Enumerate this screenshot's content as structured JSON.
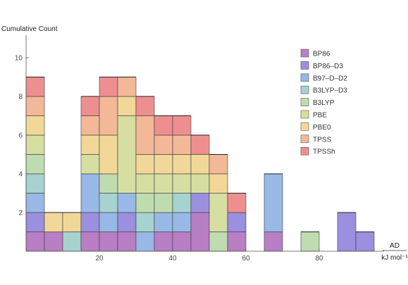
{
  "chart_data": {
    "type": "bar",
    "stacked": true,
    "title": "",
    "ylabel": "Cumulative Count",
    "xlabel": "AD",
    "xlabel_unit": "kJ mol⁻¹",
    "bin_width": 5,
    "xlim": [
      0,
      95
    ],
    "ylim": [
      0,
      11
    ],
    "xticks": [
      20,
      40,
      60,
      80
    ],
    "yticks": [
      2,
      4,
      6,
      8,
      10
    ],
    "legend_position": "top-right",
    "bins": [
      [
        0,
        5
      ],
      [
        5,
        10
      ],
      [
        10,
        15
      ],
      [
        15,
        20
      ],
      [
        20,
        25
      ],
      [
        25,
        30
      ],
      [
        30,
        35
      ],
      [
        35,
        40
      ],
      [
        40,
        45
      ],
      [
        45,
        50
      ],
      [
        50,
        55
      ],
      [
        55,
        60
      ],
      [
        60,
        65
      ],
      [
        65,
        70
      ],
      [
        70,
        75
      ],
      [
        75,
        80
      ],
      [
        80,
        85
      ],
      [
        85,
        90
      ],
      [
        90,
        95
      ]
    ],
    "series": [
      {
        "name": "BP86",
        "color": "#b87fc4",
        "values": [
          1,
          1,
          0,
          1,
          1,
          1,
          0,
          1,
          1,
          2,
          0,
          1,
          0,
          1,
          0,
          0,
          0,
          0,
          0
        ]
      },
      {
        "name": "BP86–D3",
        "color": "#9b8fe0",
        "values": [
          1,
          0,
          0,
          1,
          0,
          1,
          0,
          0,
          0,
          1,
          0,
          1,
          0,
          0,
          0,
          0,
          0,
          2,
          1
        ]
      },
      {
        "name": "B97–D–D2",
        "color": "#98b8e6",
        "values": [
          1,
          0,
          0,
          2,
          1,
          1,
          1,
          1,
          1,
          0,
          0,
          0,
          0,
          3,
          0,
          0,
          0,
          0,
          0
        ]
      },
      {
        "name": "B3LYP–D3",
        "color": "#a6d2cf",
        "values": [
          1,
          0,
          1,
          0,
          1,
          0,
          1,
          0,
          1,
          0,
          0,
          0,
          0,
          0,
          0,
          0,
          0,
          0,
          0
        ]
      },
      {
        "name": "B3LYP",
        "color": "#bedcb0",
        "values": [
          1,
          0,
          0,
          0,
          1,
          0,
          1,
          1,
          0,
          0,
          1,
          0,
          0,
          0,
          0,
          1,
          0,
          0,
          0
        ]
      },
      {
        "name": "PBE",
        "color": "#d7dea1",
        "values": [
          1,
          0,
          0,
          1,
          0,
          4,
          1,
          1,
          1,
          1,
          2,
          0,
          0,
          0,
          0,
          0,
          0,
          0,
          0
        ]
      },
      {
        "name": "PBE0",
        "color": "#f2d898",
        "values": [
          1,
          1,
          1,
          1,
          2,
          1,
          1,
          1,
          1,
          1,
          1,
          0,
          0,
          0,
          0,
          0,
          0,
          0,
          0
        ]
      },
      {
        "name": "TPSS",
        "color": "#f3b898",
        "values": [
          1,
          0,
          0,
          1,
          2,
          1,
          2,
          1,
          1,
          0,
          1,
          0,
          0,
          0,
          0,
          0,
          0,
          0,
          0
        ]
      },
      {
        "name": "TPSSh",
        "color": "#ee8f8f",
        "values": [
          1,
          0,
          0,
          1,
          1,
          0,
          1,
          1,
          1,
          1,
          0,
          1,
          0,
          0,
          0,
          0,
          0,
          0,
          0
        ]
      }
    ]
  }
}
